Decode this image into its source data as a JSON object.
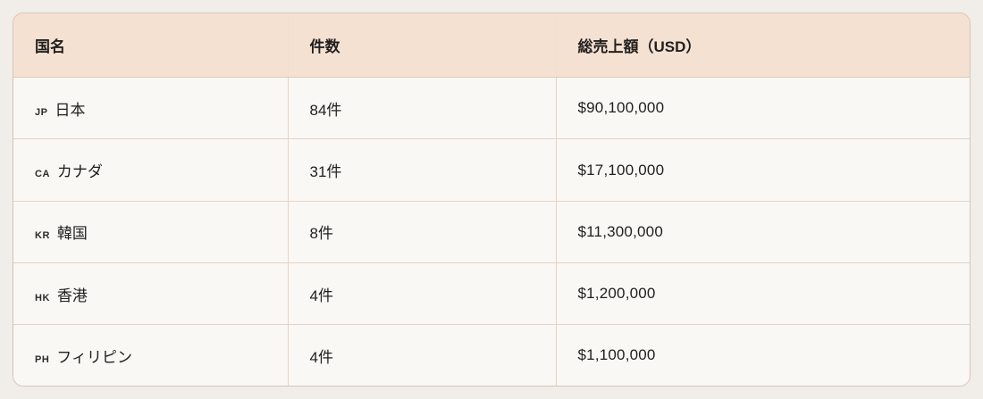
{
  "table": {
    "columns": {
      "country": "国名",
      "count": "件数",
      "sales": "総売上額（USD）"
    },
    "rows": [
      {
        "code": "JP",
        "country": "日本",
        "count": "84件",
        "sales": "$90,100,000"
      },
      {
        "code": "CA",
        "country": "カナダ",
        "count": "31件",
        "sales": "$17,100,000"
      },
      {
        "code": "KR",
        "country": "韓国",
        "count": "8件",
        "sales": "$11,300,000"
      },
      {
        "code": "HK",
        "country": "香港",
        "count": "4件",
        "sales": "$1,200,000"
      },
      {
        "code": "PH",
        "country": "フィリピン",
        "count": "4件",
        "sales": "$1,100,000"
      }
    ]
  },
  "colors": {
    "page_background": "#f1ede8",
    "header_background": "#f4e1d2",
    "row_background": "#faf8f5",
    "border": "#e4d3c3",
    "outer_border": "#d8c6b5",
    "text": "#211f1e"
  }
}
